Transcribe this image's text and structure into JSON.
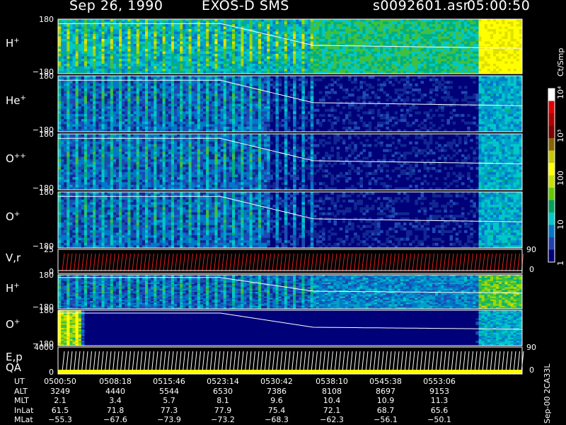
{
  "header": {
    "date": "Sep 26, 1990",
    "mission": "EXOS-D SMS",
    "file": "s0092601.asr",
    "time": "05:00:50"
  },
  "panels": [
    {
      "id": "h-plus-1",
      "label": "H",
      "sup": "+",
      "top": "180",
      "bottom": "−180"
    },
    {
      "id": "he-plus",
      "label": "He",
      "sup": "+",
      "top": "180",
      "bottom": "−180"
    },
    {
      "id": "o-plus-plus",
      "label": "O",
      "sup": "++",
      "top": "180",
      "bottom": "−180"
    },
    {
      "id": "o-plus-1",
      "label": "O",
      "sup": "+",
      "top": "180",
      "bottom": "−180"
    },
    {
      "id": "vr",
      "label": "V,r",
      "sup": "",
      "top": "25",
      "bottom": "0",
      "right_top": "90",
      "right_bottom": "0"
    },
    {
      "id": "h-plus-2",
      "label": "H",
      "sup": "+",
      "top": "180",
      "bottom": "−180"
    },
    {
      "id": "o-plus-2",
      "label": "O",
      "sup": "+",
      "top": "180",
      "bottom": "−180"
    },
    {
      "id": "ep",
      "label": "E,p",
      "sup": "",
      "top": "4000",
      "bottom": "0",
      "right_top": "90",
      "right_bottom": "0"
    }
  ],
  "qa_label": "QA",
  "colorbar": {
    "unit": "Ct/Smp",
    "ticks": [
      "10⁴",
      "10³",
      "100",
      "10",
      "1"
    ],
    "colors": [
      "#ffffff",
      "#e00000",
      "#b00000",
      "#800000",
      "#8a6400",
      "#c8c800",
      "#ffff00",
      "#c8e000",
      "#64c800",
      "#00a060",
      "#00c8c8",
      "#0078c8",
      "#2040b0",
      "#000078"
    ]
  },
  "ephemeris": {
    "rows": [
      {
        "label": "UT",
        "values": [
          "0500:50",
          "0508:18",
          "0515:46",
          "0523:14",
          "0530:42",
          "0538:10",
          "0545:38",
          "0553:06"
        ]
      },
      {
        "label": "ALT",
        "values": [
          "3249",
          "4440",
          "5544",
          "6530",
          "7386",
          "8108",
          "8697",
          "9153"
        ]
      },
      {
        "label": "MLT",
        "values": [
          "2.1",
          "3.4",
          "5.7",
          "8.1",
          "9.6",
          "10.4",
          "10.9",
          "11.3"
        ]
      },
      {
        "label": "InLat",
        "values": [
          "61.5",
          "71.8",
          "77.3",
          "77.9",
          "75.4",
          "72.1",
          "68.7",
          "65.6"
        ]
      },
      {
        "label": "MLat",
        "values": [
          "−55.3",
          "−67.6",
          "−73.9",
          "−73.2",
          "−68.3",
          "−62.3",
          "−56.1",
          "−50.1"
        ]
      }
    ]
  },
  "footer_id": "Sep-00 2CA33L",
  "chart_data": {
    "type": "heatmap",
    "x_ticks": [
      "0500:50",
      "0508:18",
      "0515:46",
      "0523:14",
      "0530:42",
      "0538:10",
      "0545:38",
      "0553:06"
    ],
    "panels": [
      {
        "name": "H+",
        "ylim": [
          -180,
          180
        ]
      },
      {
        "name": "He+",
        "ylim": [
          -180,
          180
        ]
      },
      {
        "name": "O++",
        "ylim": [
          -180,
          180
        ]
      },
      {
        "name": "O+",
        "ylim": [
          -180,
          180
        ]
      },
      {
        "name": "V,r",
        "ylim": [
          0,
          25
        ],
        "right_ylim": [
          0,
          90
        ]
      },
      {
        "name": "H+",
        "ylim": [
          -180,
          180
        ]
      },
      {
        "name": "O+",
        "ylim": [
          -180,
          180
        ]
      },
      {
        "name": "E,p",
        "ylim": [
          0,
          4000
        ],
        "right_ylim": [
          0,
          90
        ]
      }
    ],
    "colorbar": {
      "label": "Ct/Smp",
      "scale": "log",
      "range": [
        1,
        10000
      ]
    }
  }
}
